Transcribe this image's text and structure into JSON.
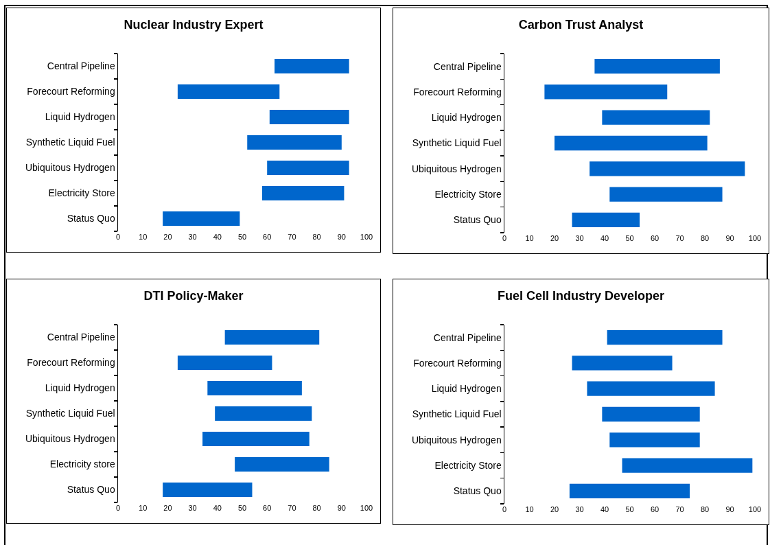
{
  "chart_data": [
    {
      "type": "bar",
      "orientation": "horizontal",
      "title": "Nuclear Industry Expert",
      "categories": [
        "Central Pipeline",
        "Forecourt Reforming",
        "Liquid Hydrogen",
        "Synthetic Liquid Fuel",
        "Ubiquitous Hydrogen",
        "Electricity Store",
        "Status Quo"
      ],
      "base": [
        63,
        24,
        61,
        52,
        60,
        58,
        18
      ],
      "values": [
        30,
        41,
        32,
        38,
        33,
        33,
        31
      ],
      "color": "#0066cc",
      "xlim": [
        0,
        100
      ],
      "xticks": [
        0,
        10,
        20,
        30,
        40,
        50,
        60,
        70,
        80,
        90,
        100
      ]
    },
    {
      "type": "bar",
      "orientation": "horizontal",
      "title": "Carbon Trust Analyst",
      "categories": [
        "Central Pipeline",
        "Forecourt Reforming",
        "Liquid Hydrogen",
        "Synthetic Liquid Fuel",
        "Ubiquitous Hydrogen",
        "Electricity Store",
        "Status Quo"
      ],
      "base": [
        36,
        16,
        39,
        20,
        34,
        42,
        27
      ],
      "values": [
        50,
        49,
        43,
        61,
        62,
        45,
        27
      ],
      "color": "#0066cc",
      "xlim": [
        0,
        100
      ],
      "xticks": [
        0,
        10,
        20,
        30,
        40,
        50,
        60,
        70,
        80,
        90,
        100
      ]
    },
    {
      "type": "bar",
      "orientation": "horizontal",
      "title": "DTI Policy-Maker",
      "categories": [
        "Central Pipeline",
        "Forecourt Reforming",
        "Liquid Hydrogen",
        "Synthetic Liquid Fuel",
        "Ubiquitous Hydrogen",
        "Electricity store",
        "Status Quo"
      ],
      "base": [
        43,
        24,
        36,
        39,
        34,
        47,
        18
      ],
      "values": [
        38,
        38,
        38,
        39,
        43,
        38,
        36
      ],
      "color": "#0066cc",
      "xlim": [
        0,
        100
      ],
      "xticks": [
        0,
        10,
        20,
        30,
        40,
        50,
        60,
        70,
        80,
        90,
        100
      ]
    },
    {
      "type": "bar",
      "orientation": "horizontal",
      "title": "Fuel Cell Industry Developer",
      "categories": [
        "Central Pipeline",
        "Forecourt Reforming",
        "Liquid Hydrogen",
        "Synthetic Liquid Fuel",
        "Ubiquitous Hydrogen",
        "Electricity Store",
        "Status Quo"
      ],
      "base": [
        41,
        27,
        33,
        39,
        42,
        47,
        26
      ],
      "values": [
        46,
        40,
        51,
        39,
        36,
        52,
        48
      ],
      "color": "#0066cc",
      "xlim": [
        0,
        100
      ],
      "xticks": [
        0,
        10,
        20,
        30,
        40,
        50,
        60,
        70,
        80,
        90,
        100
      ]
    }
  ]
}
